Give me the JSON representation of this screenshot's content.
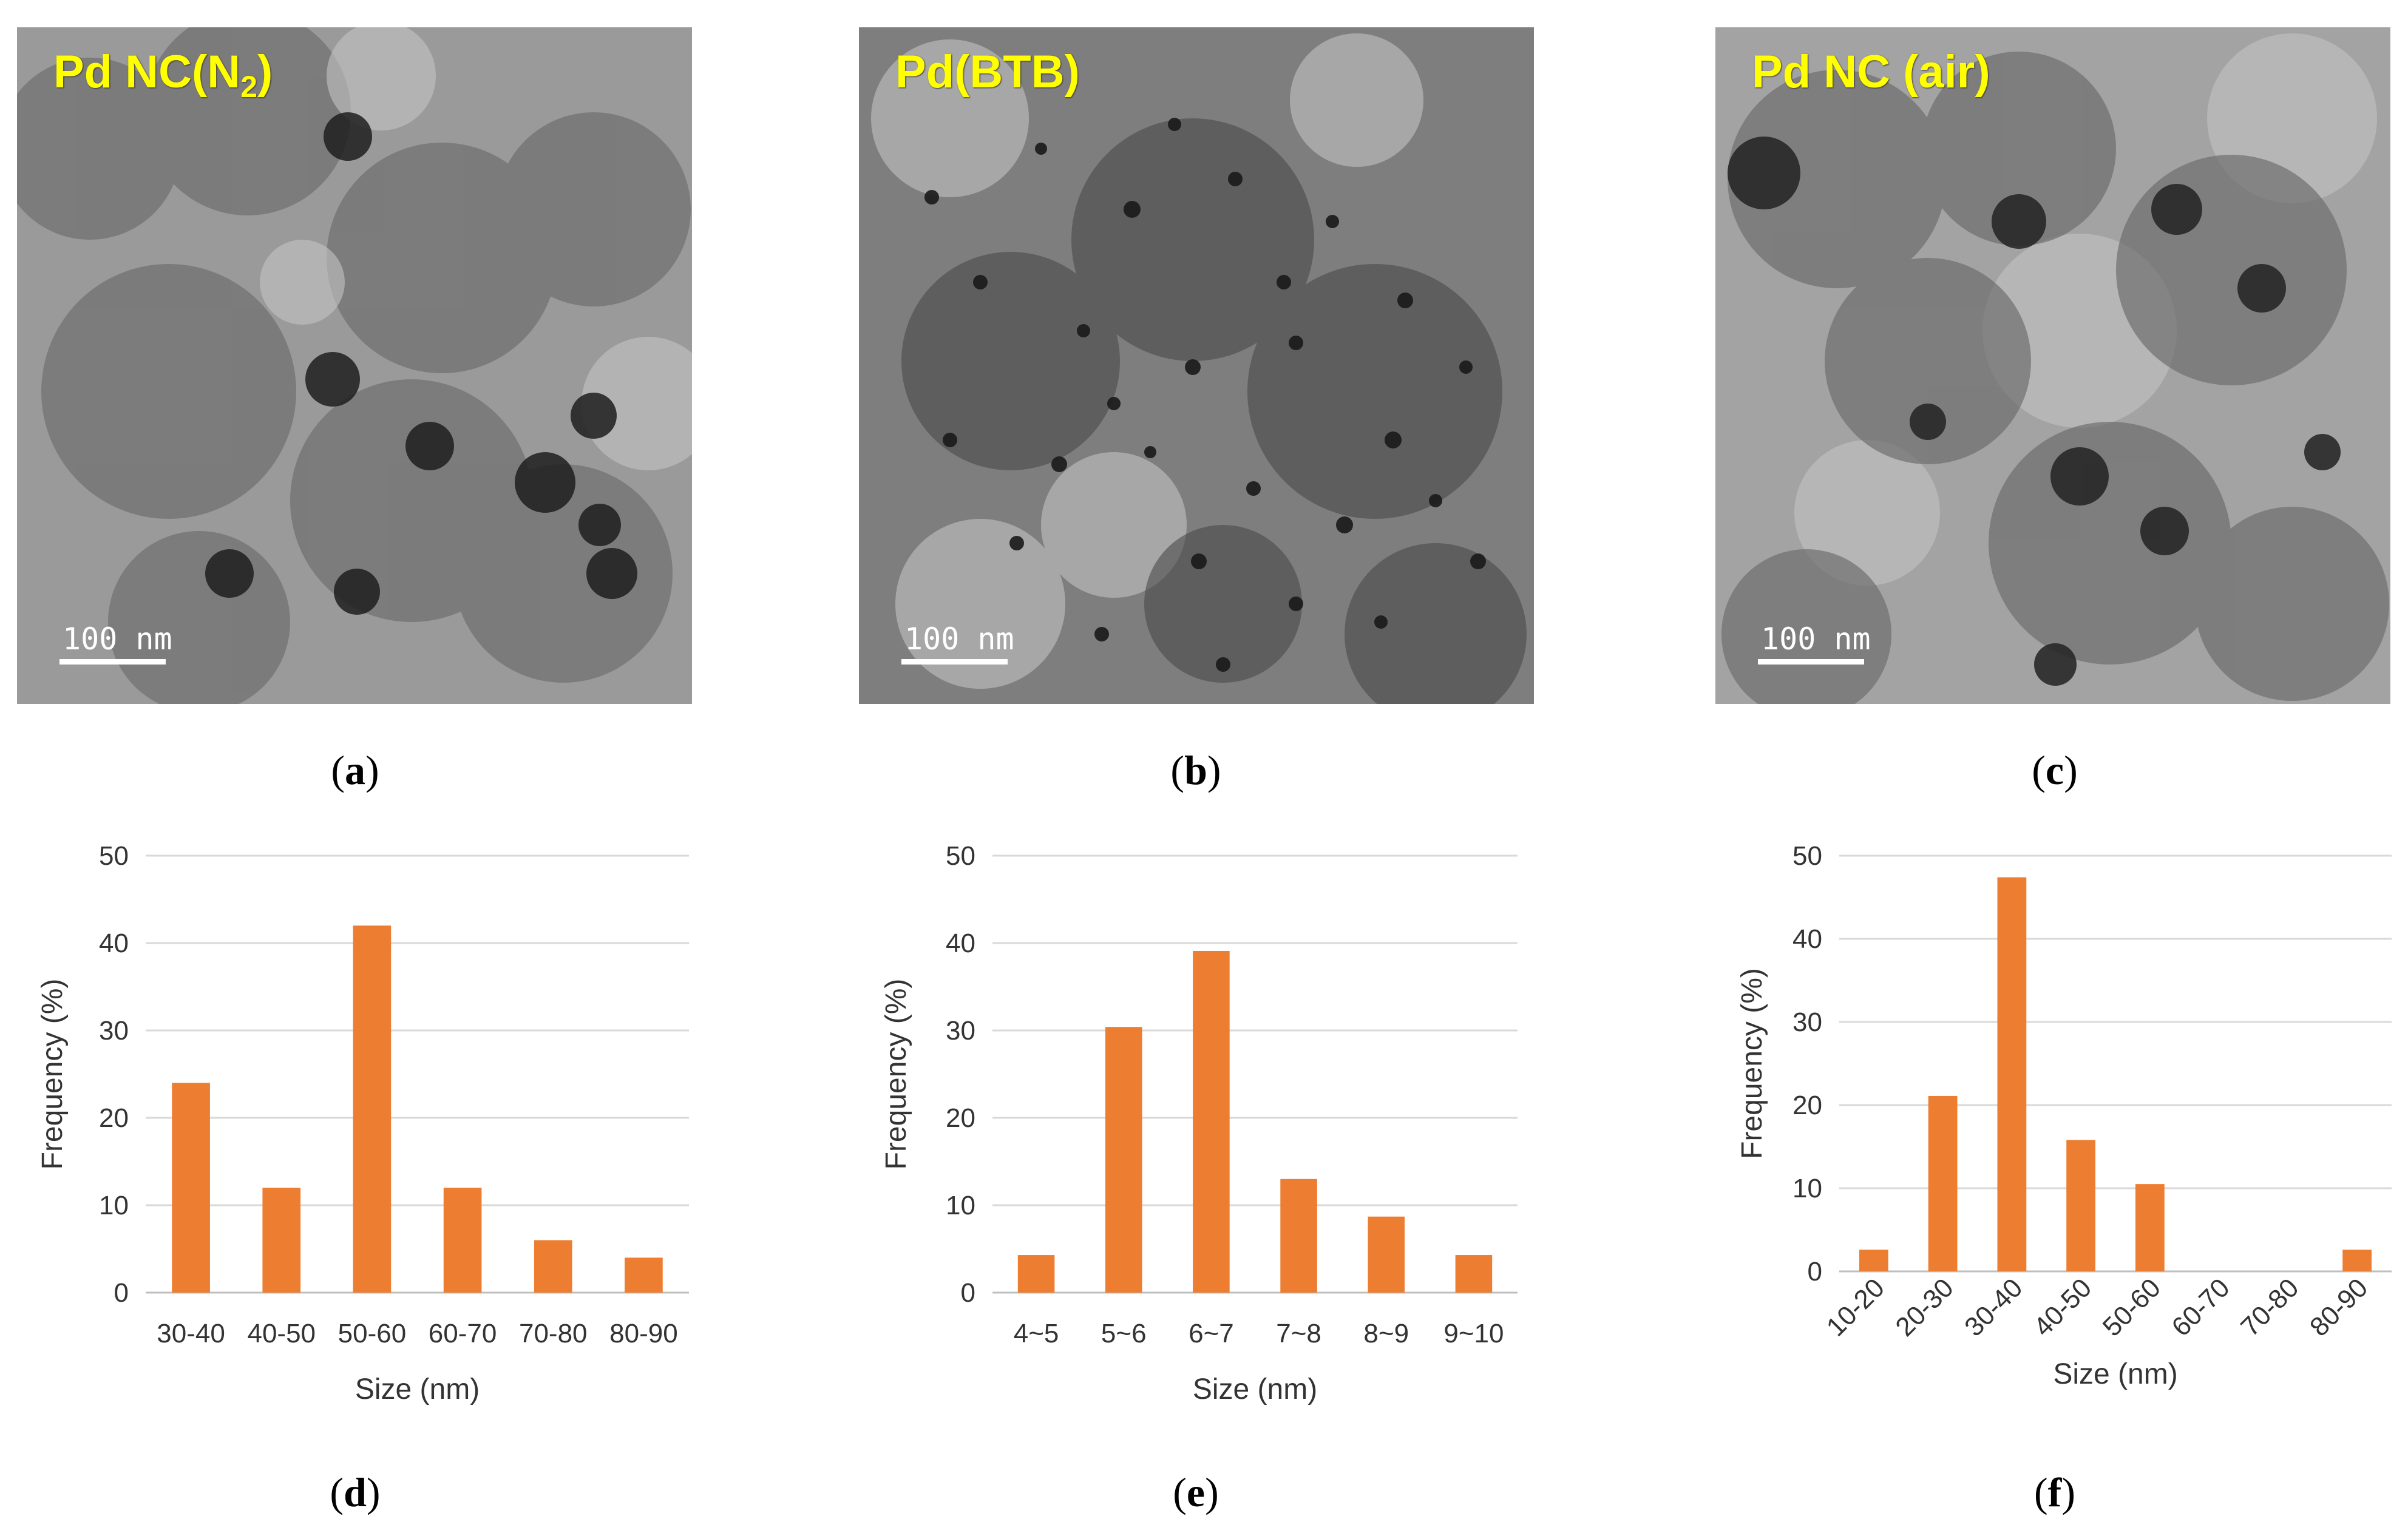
{
  "images": [
    {
      "id": "a",
      "title_main": "Pd NC(N",
      "title_sub": "2",
      "title_end": ")",
      "scale_label": "100 nm",
      "caption": "a"
    },
    {
      "id": "b",
      "title_main": "Pd(BTB)",
      "title_sub": "",
      "title_end": "",
      "scale_label": "100 nm",
      "caption": "b"
    },
    {
      "id": "c",
      "title_main": "Pd NC (air)",
      "title_sub": "",
      "title_end": "",
      "scale_label": "100 nm",
      "caption": "c"
    }
  ],
  "colors": {
    "bar": "#ED7D31",
    "grid": "#D9D9D9",
    "axis": "#BFBFBF",
    "title": "#FFFF00"
  },
  "chart_data": [
    {
      "type": "bar",
      "caption": "d",
      "categories": [
        "30-40",
        "40-50",
        "50-60",
        "60-70",
        "70-80",
        "80-90"
      ],
      "values": [
        24,
        12,
        42,
        12,
        6,
        4
      ],
      "xlabel": "Size (nm)",
      "ylabel": "Frequency (%)",
      "ylim": [
        0,
        50
      ],
      "yticks": [
        0,
        10,
        20,
        30,
        40,
        50
      ],
      "grid": true,
      "rotate_xticks": false
    },
    {
      "type": "bar",
      "caption": "e",
      "categories": [
        "4~5",
        "5~6",
        "6~7",
        "7~8",
        "8~9",
        "9~10"
      ],
      "values": [
        4.3,
        30.4,
        39.1,
        13,
        8.7,
        4.3
      ],
      "xlabel": "Size (nm)",
      "ylabel": "Frequency (%)",
      "ylim": [
        0,
        50
      ],
      "yticks": [
        0,
        10,
        20,
        30,
        40,
        50
      ],
      "grid": true,
      "rotate_xticks": false
    },
    {
      "type": "bar",
      "caption": "f",
      "categories": [
        "10-20",
        "20-30",
        "30-40",
        "40-50",
        "50-60",
        "60-70",
        "70-80",
        "80-90"
      ],
      "values": [
        2.6,
        21.1,
        47.4,
        15.8,
        10.5,
        0,
        0,
        2.6
      ],
      "xlabel": "Size (nm)",
      "ylabel": "Frequency (%)",
      "ylim": [
        0,
        50
      ],
      "yticks": [
        0,
        10,
        20,
        30,
        40,
        50
      ],
      "grid": true,
      "rotate_xticks": true
    }
  ]
}
